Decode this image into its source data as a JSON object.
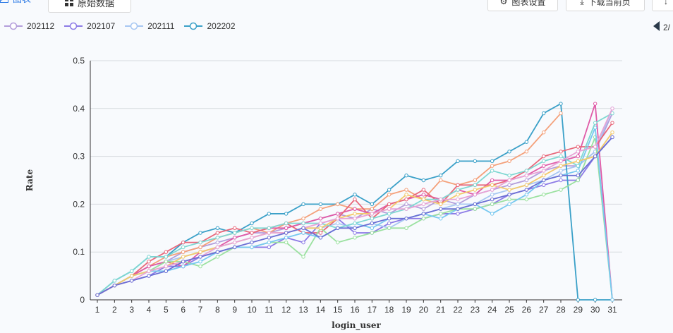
{
  "toolbar": {
    "tab_chart": "图表",
    "tab_raw": "原始数据",
    "settings": "图表设置",
    "download": "下载当前页",
    "more": "↓"
  },
  "legend": {
    "items": [
      {
        "label": "202112",
        "color": "#b39ddb"
      },
      {
        "label": "202107",
        "color": "#8c7ae6"
      },
      {
        "label": "202111",
        "color": "#a7c7f2"
      },
      {
        "label": "202202",
        "color": "#3aa0c8"
      }
    ]
  },
  "pager": {
    "label": "2/"
  },
  "chart_data": {
    "type": "line",
    "xlabel": "login_user",
    "ylabel": "Rate",
    "ylim": [
      0,
      0.5
    ],
    "yticks": [
      0,
      0.1,
      0.2,
      0.3,
      0.4,
      0.5
    ],
    "x": [
      1,
      2,
      3,
      4,
      5,
      6,
      7,
      8,
      9,
      10,
      11,
      12,
      13,
      14,
      15,
      16,
      17,
      18,
      19,
      20,
      21,
      22,
      23,
      24,
      25,
      26,
      27,
      28,
      29,
      30,
      31
    ],
    "series": [
      {
        "name": "202112",
        "color": "#b39ddb",
        "values": [
          0.01,
          0.03,
          0.05,
          0.07,
          0.08,
          0.1,
          0.11,
          0.12,
          0.13,
          0.14,
          0.14,
          0.15,
          0.16,
          0.17,
          0.18,
          0.17,
          0.19,
          0.18,
          0.2,
          0.19,
          0.21,
          0.2,
          0.22,
          0.23,
          0.24,
          0.25,
          0.27,
          0.28,
          0.28,
          0.31,
          0.39
        ]
      },
      {
        "name": "202107",
        "color": "#8c7ae6",
        "values": [
          0.01,
          0.03,
          0.04,
          0.05,
          0.07,
          0.07,
          0.09,
          0.1,
          0.11,
          0.11,
          0.11,
          0.13,
          0.12,
          0.16,
          0.17,
          0.14,
          0.14,
          0.16,
          0.17,
          0.17,
          0.18,
          0.18,
          0.19,
          0.2,
          0.22,
          0.23,
          0.24,
          0.25,
          0.25,
          0.3,
          0.34
        ]
      },
      {
        "name": "202111",
        "color": "#a7c7f2",
        "values": [
          0.01,
          0.03,
          0.05,
          0.06,
          0.08,
          0.09,
          0.1,
          0.11,
          0.12,
          0.13,
          0.14,
          0.14,
          0.15,
          0.15,
          0.16,
          0.15,
          0.16,
          0.15,
          0.17,
          0.18,
          0.19,
          0.2,
          0.2,
          0.22,
          0.23,
          0.24,
          0.25,
          0.27,
          0.28,
          0.31,
          0.4
        ]
      },
      {
        "name": "202202",
        "color": "#3aa0c8",
        "values": [
          0.01,
          0.04,
          0.06,
          0.09,
          0.09,
          0.12,
          0.14,
          0.15,
          0.14,
          0.16,
          0.18,
          0.18,
          0.2,
          0.2,
          0.2,
          0.22,
          0.2,
          0.23,
          0.26,
          0.25,
          0.26,
          0.29,
          0.29,
          0.29,
          0.31,
          0.33,
          0.39,
          0.41,
          0.0,
          0.0,
          0.0
        ]
      },
      {
        "name": "",
        "color": "#f4a07a",
        "values": [
          0.01,
          0.03,
          0.05,
          0.07,
          0.09,
          0.1,
          0.11,
          0.13,
          0.14,
          0.15,
          0.14,
          0.16,
          0.17,
          0.19,
          0.2,
          0.19,
          0.19,
          0.22,
          0.23,
          0.21,
          0.25,
          0.24,
          0.25,
          0.28,
          0.29,
          0.31,
          0.35,
          0.39,
          null,
          null,
          null
        ]
      },
      {
        "name": "",
        "color": "#e05aa7",
        "values": [
          0.01,
          0.03,
          0.05,
          0.07,
          0.08,
          0.07,
          0.1,
          0.11,
          0.13,
          0.14,
          0.15,
          0.15,
          0.16,
          0.17,
          0.18,
          0.19,
          0.18,
          0.2,
          0.21,
          0.22,
          0.21,
          0.23,
          0.22,
          0.25,
          0.25,
          0.26,
          0.28,
          0.29,
          0.3,
          0.41,
          0.0
        ]
      },
      {
        "name": "",
        "color": "#e8677a",
        "values": [
          0.01,
          0.03,
          0.05,
          0.08,
          0.1,
          0.12,
          0.12,
          0.14,
          0.15,
          0.14,
          0.15,
          0.16,
          0.14,
          0.14,
          0.17,
          0.21,
          0.17,
          0.2,
          0.21,
          0.23,
          0.2,
          0.24,
          0.24,
          0.24,
          0.25,
          0.27,
          0.3,
          0.31,
          0.32,
          0.32,
          0.37
        ]
      },
      {
        "name": "",
        "color": "#9be1a0",
        "values": [
          0.01,
          0.03,
          0.05,
          0.06,
          0.08,
          0.08,
          0.07,
          0.09,
          0.11,
          0.11,
          0.12,
          0.12,
          0.09,
          0.15,
          0.12,
          0.13,
          0.14,
          0.15,
          0.15,
          0.17,
          0.18,
          0.19,
          0.19,
          0.2,
          0.21,
          0.21,
          0.22,
          0.23,
          0.25,
          0.34,
          0.0
        ]
      },
      {
        "name": "",
        "color": "#78c8f0",
        "values": [
          0.01,
          0.03,
          0.05,
          0.06,
          0.06,
          0.07,
          0.08,
          0.1,
          0.11,
          0.11,
          0.12,
          0.13,
          0.14,
          0.13,
          0.15,
          0.16,
          0.15,
          0.17,
          0.17,
          0.18,
          0.17,
          0.19,
          0.2,
          0.18,
          0.2,
          0.22,
          0.25,
          0.26,
          0.27,
          0.36,
          0.0
        ]
      },
      {
        "name": "",
        "color": "#7fd8d2",
        "values": [
          0.01,
          0.04,
          0.06,
          0.09,
          0.09,
          0.11,
          0.12,
          0.13,
          0.14,
          0.15,
          0.15,
          0.16,
          0.16,
          0.16,
          0.15,
          0.16,
          0.17,
          0.18,
          0.19,
          0.21,
          0.21,
          0.23,
          0.24,
          0.27,
          0.26,
          0.27,
          0.29,
          0.3,
          0.28,
          0.37,
          0.39
        ]
      },
      {
        "name": "",
        "color": "#f3c96b",
        "values": [
          0.01,
          0.03,
          0.05,
          0.06,
          0.07,
          0.09,
          0.1,
          0.11,
          0.12,
          0.13,
          0.14,
          0.14,
          0.15,
          0.15,
          0.17,
          0.18,
          0.18,
          0.19,
          0.22,
          0.21,
          0.2,
          0.22,
          0.23,
          0.24,
          0.23,
          0.24,
          0.26,
          0.28,
          0.29,
          0.3,
          0.35
        ]
      },
      {
        "name": "",
        "color": "#e8a3d6",
        "values": [
          0.01,
          0.03,
          0.04,
          0.06,
          0.07,
          0.08,
          0.09,
          0.11,
          0.12,
          0.13,
          0.14,
          0.14,
          0.15,
          0.16,
          0.17,
          0.17,
          0.18,
          0.19,
          0.19,
          0.2,
          0.21,
          0.21,
          0.22,
          0.23,
          0.25,
          0.26,
          0.27,
          0.29,
          0.31,
          0.32,
          0.4
        ]
      },
      {
        "name": "",
        "color": "#6b6fd4",
        "values": [
          0.01,
          0.03,
          0.04,
          0.05,
          0.06,
          0.08,
          0.09,
          0.1,
          0.11,
          0.12,
          0.13,
          0.14,
          0.15,
          0.13,
          0.15,
          0.15,
          0.16,
          0.17,
          0.17,
          0.18,
          0.19,
          0.19,
          0.2,
          0.21,
          0.22,
          0.23,
          0.25,
          0.26,
          0.26,
          0.3,
          0.34
        ]
      }
    ]
  }
}
